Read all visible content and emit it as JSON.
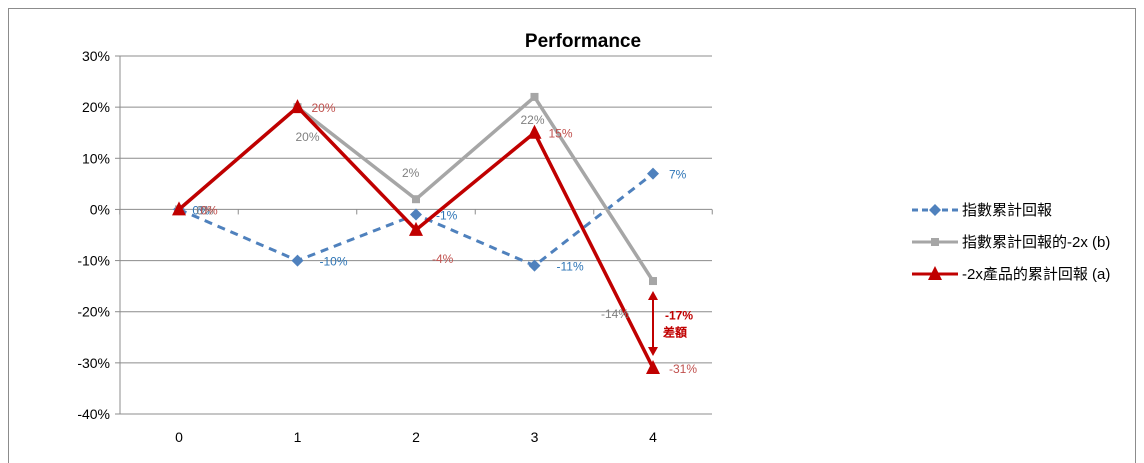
{
  "chart_data": {
    "type": "line",
    "title": "Performance",
    "x": [
      0,
      1,
      2,
      3,
      4
    ],
    "x_tick_labels": [
      "0",
      "1",
      "2",
      "3",
      "4"
    ],
    "ylim": [
      -0.4,
      0.3
    ],
    "y_tick_labels": [
      "30%",
      "20%",
      "10%",
      "0%",
      "-10%",
      "-20%",
      "-30%",
      "-40%"
    ],
    "y_ticks": [
      0.3,
      0.2,
      0.1,
      0.0,
      -0.1,
      -0.2,
      -0.3,
      -0.4
    ],
    "grid": true,
    "legend_position": "right",
    "series": [
      {
        "name": "指數累計回報",
        "values": [
          0.0,
          -0.1,
          -0.01,
          -0.11,
          0.07
        ],
        "data_labels": [
          "0%",
          "-10%",
          "-1%",
          "-11%",
          "7%"
        ],
        "color": "#4f81bd",
        "dash": true,
        "marker": "diamond"
      },
      {
        "name": "指數累計回報的-2x (b)",
        "values": [
          0.0,
          0.2,
          0.02,
          0.22,
          -0.14
        ],
        "data_labels": [
          "0%",
          "20%",
          "2%",
          "22%",
          "-14%"
        ],
        "color": "#a6a6a6",
        "dash": false,
        "marker": "square"
      },
      {
        "name": "-2x產品的累計回報 (a)",
        "values": [
          0.0,
          0.2,
          -0.04,
          0.15,
          -0.31
        ],
        "data_labels": [
          "0%",
          "20%",
          "-4%",
          "15%",
          "-31%"
        ],
        "color": "#c00000",
        "dash": false,
        "marker": "triangle"
      }
    ],
    "annotation": {
      "value_label": "-17%",
      "text": "差額",
      "from": -0.14,
      "to": -0.31,
      "x": 4
    }
  }
}
